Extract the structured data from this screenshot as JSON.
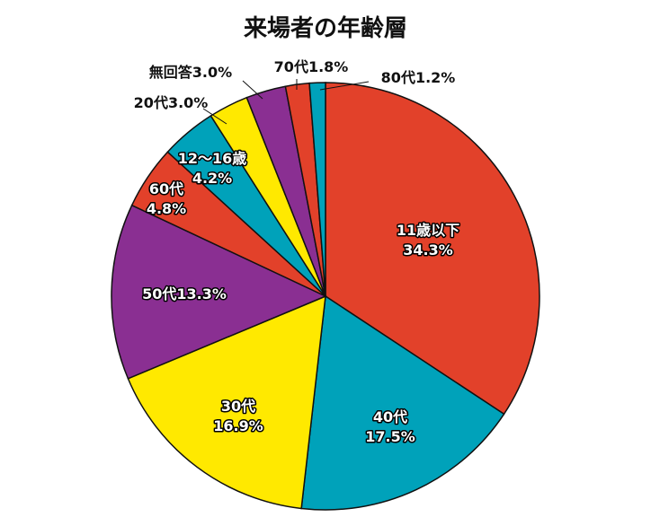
{
  "chart_data": {
    "type": "pie",
    "title": "来場者の年齢層",
    "slices": [
      {
        "name": "11歳以下",
        "value": 34.3,
        "value_label": "34.3%",
        "color": "#e2412a"
      },
      {
        "name": "40代",
        "value": 17.5,
        "value_label": "17.5%",
        "color": "#00a2ba"
      },
      {
        "name": "30代",
        "value": 16.9,
        "value_label": "16.9%",
        "color": "#ffe900"
      },
      {
        "name": "50代",
        "value": 13.3,
        "value_label": "13.3%",
        "color": "#8a2f92"
      },
      {
        "name": "60代",
        "value": 4.8,
        "value_label": "4.8%",
        "color": "#e2412a"
      },
      {
        "name": "12〜16歳",
        "value": 4.2,
        "value_label": "4.2%",
        "color": "#00a2ba"
      },
      {
        "name": "20代",
        "value": 3.0,
        "value_label": "3.0%",
        "color": "#ffe900"
      },
      {
        "name": "無回答",
        "value": 3.0,
        "value_label": "3.0%",
        "color": "#8a2f92"
      },
      {
        "name": "70代",
        "value": 1.8,
        "value_label": "1.8%",
        "color": "#e2412a"
      },
      {
        "name": "80代",
        "value": 1.2,
        "value_label": "1.2%",
        "color": "#00a2ba"
      }
    ]
  }
}
